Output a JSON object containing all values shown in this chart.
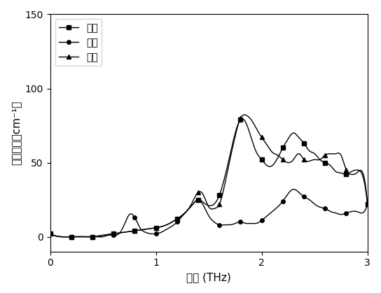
{
  "xlabel": "频率 (THz)",
  "ylabel": "吸收系数（cm⁻¹）",
  "xlim": [
    0,
    3
  ],
  "ylim": [
    -10,
    150
  ],
  "xticks": [
    0,
    1,
    2,
    3
  ],
  "yticks": [
    0,
    50,
    100,
    150
  ],
  "legend": [
    "果糖",
    "乳糖",
    "蕊糖"
  ],
  "fructose_x": [
    0.0,
    0.1,
    0.2,
    0.3,
    0.4,
    0.5,
    0.6,
    0.7,
    0.8,
    0.9,
    1.0,
    1.1,
    1.2,
    1.3,
    1.35,
    1.4,
    1.45,
    1.5,
    1.55,
    1.6,
    1.65,
    1.7,
    1.75,
    1.8,
    1.85,
    1.9,
    1.95,
    2.0,
    2.05,
    2.1,
    2.15,
    2.2,
    2.25,
    2.3,
    2.35,
    2.4,
    2.45,
    2.5,
    2.55,
    2.6,
    2.65,
    2.7,
    2.75,
    2.8,
    2.85,
    2.9,
    2.95,
    3.0
  ],
  "fructose_y": [
    2,
    0,
    0,
    0,
    0,
    1,
    2,
    3,
    4,
    5,
    6,
    8,
    12,
    18,
    22,
    25,
    23,
    21,
    22,
    28,
    40,
    55,
    70,
    79,
    77,
    67,
    57,
    52,
    48,
    48,
    53,
    60,
    66,
    70,
    67,
    63,
    58,
    56,
    52,
    50,
    48,
    44,
    43,
    42,
    44,
    45,
    42,
    22
  ],
  "lactose_x": [
    0.0,
    0.1,
    0.2,
    0.3,
    0.35,
    0.4,
    0.45,
    0.5,
    0.55,
    0.6,
    0.65,
    0.7,
    0.75,
    0.8,
    0.85,
    0.9,
    0.95,
    1.0,
    1.05,
    1.1,
    1.15,
    1.2,
    1.25,
    1.3,
    1.35,
    1.4,
    1.45,
    1.5,
    1.55,
    1.6,
    1.65,
    1.7,
    1.75,
    1.8,
    1.85,
    1.9,
    1.95,
    2.0,
    2.05,
    2.1,
    2.15,
    2.2,
    2.25,
    2.3,
    2.35,
    2.4,
    2.45,
    2.5,
    2.55,
    2.6,
    2.65,
    2.7,
    2.75,
    2.8,
    2.85,
    2.9,
    2.95,
    3.0
  ],
  "lactose_y": [
    2,
    0,
    0,
    0,
    0,
    0,
    0,
    0,
    1,
    1,
    2,
    8,
    15,
    13,
    6,
    3,
    2,
    2,
    3,
    5,
    7,
    10,
    14,
    18,
    22,
    25,
    21,
    14,
    10,
    8,
    8,
    8,
    9,
    10,
    9,
    9,
    9,
    11,
    14,
    17,
    20,
    24,
    29,
    32,
    30,
    27,
    25,
    22,
    20,
    19,
    17,
    16,
    15,
    16,
    17,
    17,
    16,
    22
  ],
  "sucrose_x": [
    0.0,
    0.1,
    0.2,
    0.3,
    0.4,
    0.5,
    0.6,
    0.7,
    0.8,
    0.9,
    1.0,
    1.1,
    1.2,
    1.3,
    1.35,
    1.4,
    1.45,
    1.5,
    1.55,
    1.6,
    1.65,
    1.7,
    1.75,
    1.8,
    1.85,
    1.9,
    1.95,
    2.0,
    2.05,
    2.1,
    2.15,
    2.2,
    2.25,
    2.3,
    2.35,
    2.4,
    2.45,
    2.5,
    2.55,
    2.6,
    2.65,
    2.7,
    2.75,
    2.8,
    2.85,
    2.9,
    2.95,
    3.0
  ],
  "sucrose_y": [
    2,
    0,
    0,
    0,
    0,
    1,
    2,
    3,
    4,
    5,
    6,
    8,
    12,
    18,
    24,
    30,
    28,
    20,
    19,
    22,
    35,
    52,
    68,
    80,
    82,
    79,
    73,
    67,
    62,
    57,
    55,
    52,
    50,
    52,
    56,
    52,
    51,
    52,
    52,
    55,
    56,
    56,
    55,
    45,
    42,
    43,
    44,
    22
  ],
  "font_path": ""
}
